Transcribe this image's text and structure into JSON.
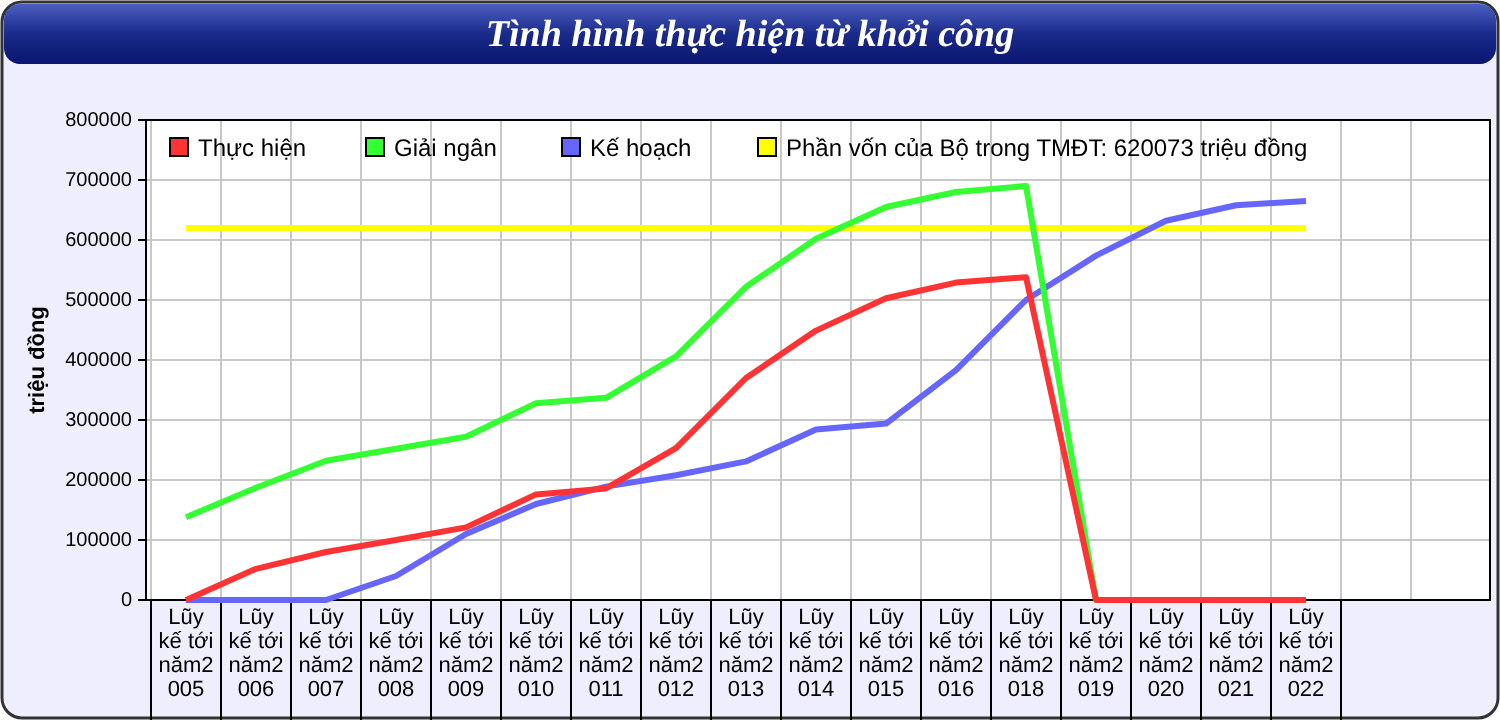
{
  "chart_data": {
    "type": "line",
    "title": "Tình hình thực hiện từ khởi công",
    "ylabel": "triệu đồng",
    "categories": [
      "Lũy kế tới năm2005",
      "Lũy kế tới năm2006",
      "Lũy kế tới năm2007",
      "Lũy kế tới năm2008",
      "Lũy kế tới năm2009",
      "Lũy kế tới năm2010",
      "Lũy kế tới năm2011",
      "Lũy kế tới năm2012",
      "Lũy kế tới năm2013",
      "Lũy kế tới năm2014",
      "Lũy kế tới năm2015",
      "Lũy kế tới năm2016",
      "Lũy kế tới năm2018",
      "Lũy kế tới năm2019",
      "Lũy kế tới năm2020",
      "Lũy kế tới năm2021",
      "Lũy kế tới năm2022"
    ],
    "series": [
      {
        "name": "Thực hiện",
        "color": "#ff3333",
        "values": [
          0,
          52000,
          80000,
          100000,
          121000,
          176000,
          186000,
          253000,
          370000,
          449000,
          503000,
          529000,
          538000,
          0,
          0,
          0,
          0
        ]
      },
      {
        "name": "Giải ngân",
        "color": "#33ff33",
        "values": [
          138000,
          187000,
          232000,
          252000,
          272000,
          328000,
          337000,
          406000,
          522000,
          602000,
          655000,
          680000,
          690000,
          0,
          null,
          null,
          null
        ]
      },
      {
        "name": "Kế hoạch",
        "color": "#6666ff",
        "values": [
          0,
          0,
          0,
          40000,
          110000,
          160000,
          189000,
          208000,
          231000,
          284000,
          294000,
          383000,
          500000,
          574000,
          632000,
          658000,
          665000
        ]
      },
      {
        "name": "Phần vốn của Bộ trong TMĐT: 620073 triệu đồng",
        "color": "#ffff00",
        "values": [
          620073,
          620073,
          620073,
          620073,
          620073,
          620073,
          620073,
          620073,
          620073,
          620073,
          620073,
          620073,
          620073,
          620073,
          620073,
          620073,
          620073
        ]
      }
    ],
    "ylim": [
      0,
      800000
    ],
    "yticks": [
      0,
      100000,
      200000,
      300000,
      400000,
      500000,
      600000,
      700000,
      800000
    ],
    "grid": true,
    "legend": "top left",
    "marker": "none",
    "line_style": "solid"
  }
}
